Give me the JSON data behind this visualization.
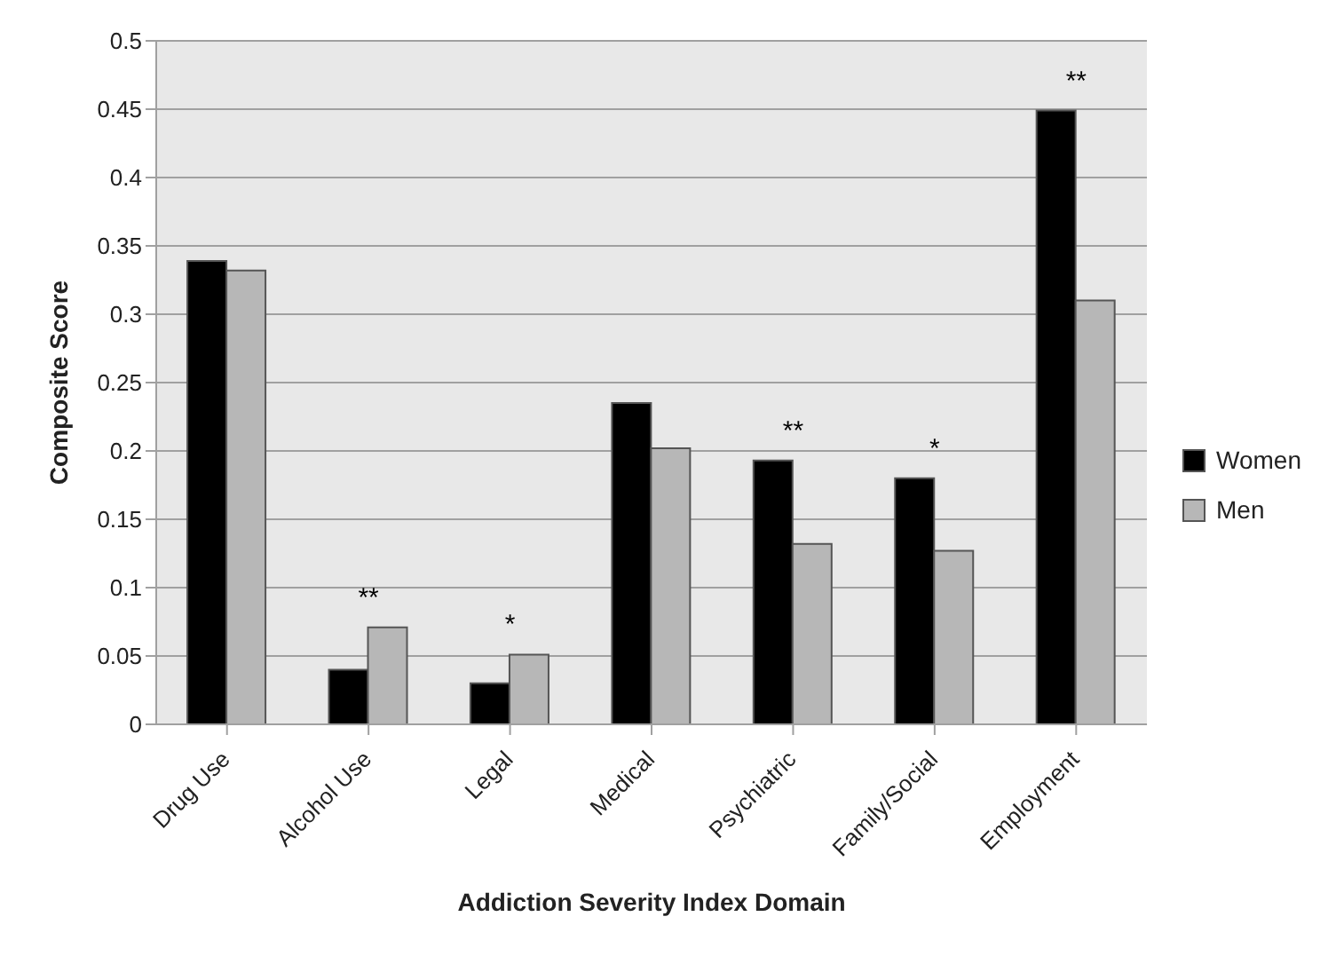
{
  "chart_data": {
    "type": "bar",
    "xlabel": "Addiction Severity Index Domain",
    "ylabel": "Composite Score",
    "categories": [
      "Drug Use",
      "Alcohol Use",
      "Legal",
      "Medical",
      "Psychiatric",
      "Family/Social",
      "Employment"
    ],
    "series": [
      {
        "name": "Women",
        "color": "#000000",
        "values": [
          0.339,
          0.04,
          0.03,
          0.235,
          0.193,
          0.18,
          0.449
        ]
      },
      {
        "name": "Men",
        "color": "#b7b7b7",
        "values": [
          0.332,
          0.071,
          0.051,
          0.202,
          0.132,
          0.127,
          0.31
        ]
      }
    ],
    "ylim": [
      0,
      0.5
    ],
    "yticks": [
      0,
      0.05,
      0.1,
      0.15,
      0.2,
      0.25,
      0.3,
      0.35,
      0.4,
      0.45,
      0.5
    ],
    "grid": "y",
    "legend": "right",
    "annotations": [
      {
        "text": "**",
        "x": "Alcohol Use",
        "y": 0.071
      },
      {
        "text": "*",
        "x": "Legal",
        "y": 0.051
      },
      {
        "text": "**",
        "x": "Psychiatric",
        "y": 0.193
      },
      {
        "text": "*",
        "x": "Family/Social",
        "y": 0.18
      },
      {
        "text": "**",
        "x": "Employment",
        "y": 0.449
      }
    ]
  }
}
